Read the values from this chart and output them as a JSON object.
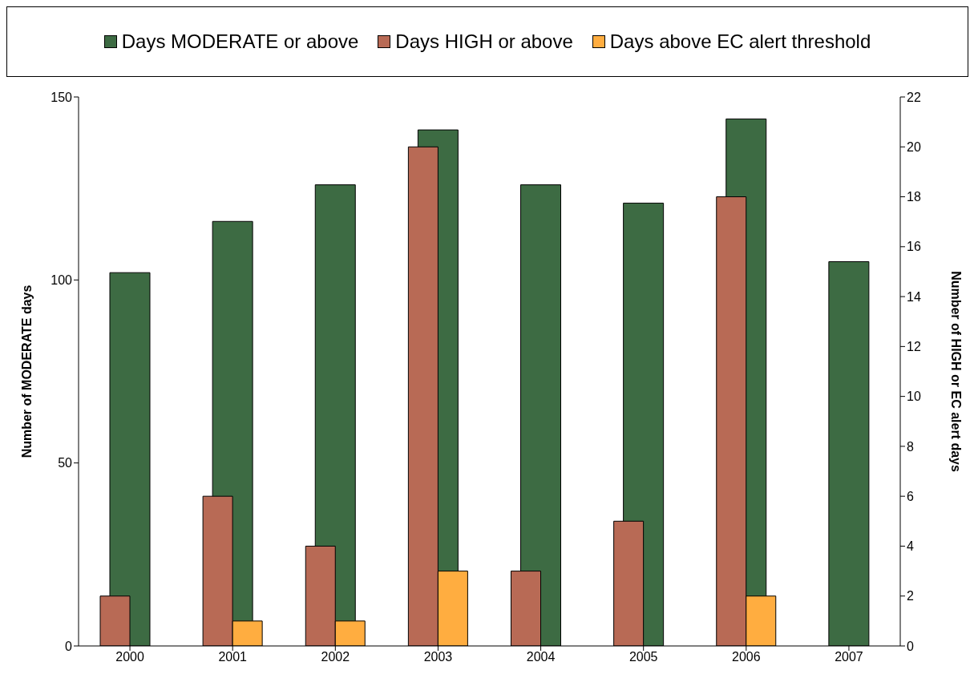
{
  "chart_data": {
    "type": "bar",
    "categories": [
      "2000",
      "2001",
      "2002",
      "2003",
      "2004",
      "2005",
      "2006",
      "2007"
    ],
    "series": [
      {
        "name": "Days MODERATE or above",
        "color": "#3d6b43",
        "values": [
          102,
          116,
          126,
          141,
          126,
          121,
          144,
          105
        ]
      },
      {
        "name": "Days HIGH or above",
        "color": "#b86a55",
        "axis": "y2",
        "values": [
          2,
          6,
          4,
          20,
          3,
          5,
          18,
          0
        ]
      },
      {
        "name": "Days above EC alert threshold",
        "color": "#ffad40",
        "axis": "y2",
        "values": [
          0,
          1,
          1,
          3,
          0,
          0,
          2,
          0
        ]
      }
    ],
    "ylabel": "Number of MODERATE days",
    "y2label": "Number of HIGH or EC alert days",
    "ylim": [
      0,
      150
    ],
    "yticks": [
      0,
      50,
      100,
      150
    ],
    "y2lim": [
      0,
      22
    ],
    "y2ticks": [
      0,
      2,
      4,
      6,
      8,
      10,
      12,
      14,
      16,
      18,
      20,
      22
    ],
    "grid": false,
    "legend": "top"
  }
}
